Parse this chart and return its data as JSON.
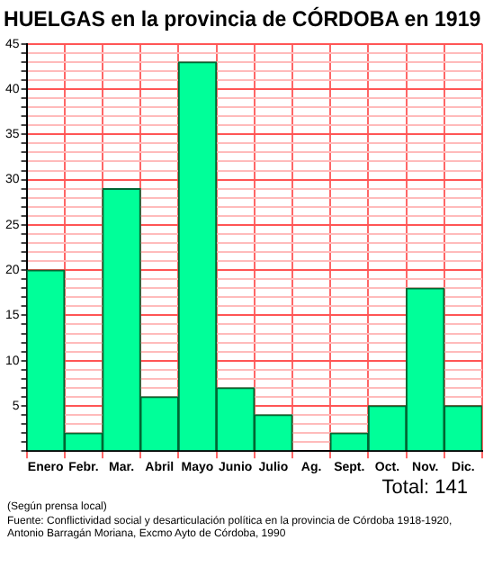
{
  "chart_data": {
    "type": "bar",
    "title": "HUELGAS en la provincia de CÓRDOBA en 1919",
    "categories": [
      "Enero",
      "Febr.",
      "Mar.",
      "Abril",
      "Mayo",
      "Junio",
      "Julio",
      "Ag.",
      "Sept.",
      "Oct.",
      "Nov.",
      "Dic."
    ],
    "values": [
      20,
      2,
      29,
      6,
      43,
      7,
      4,
      0,
      2,
      5,
      18,
      5
    ],
    "color": "#00ff99",
    "ylim": [
      0,
      45
    ],
    "yticks": [
      {
        "value": 0,
        "label": null
      },
      {
        "value": 1,
        "label": null
      },
      {
        "value": 2,
        "label": null
      },
      {
        "value": 3,
        "label": null
      },
      {
        "value": 4,
        "label": null
      },
      5,
      {
        "value": 6,
        "label": null
      },
      {
        "value": 7,
        "label": null
      },
      {
        "value": 8,
        "label": null
      },
      {
        "value": 9,
        "label": null
      },
      10,
      {
        "value": 11,
        "label": null
      },
      {
        "value": 12,
        "label": null
      },
      {
        "value": 13,
        "label": null
      },
      {
        "value": 14,
        "label": null
      },
      15,
      {
        "value": 16,
        "label": null
      },
      {
        "value": 17,
        "label": null
      },
      {
        "value": 18,
        "label": null
      },
      {
        "value": 19,
        "label": null
      },
      20,
      {
        "value": 21,
        "label": null
      },
      {
        "value": 22,
        "label": null
      },
      {
        "value": 23,
        "label": null
      },
      {
        "value": 24,
        "label": null
      },
      25,
      {
        "value": 26,
        "label": null
      },
      {
        "value": 27,
        "label": null
      },
      {
        "value": 28,
        "label": null
      },
      {
        "value": 29,
        "label": null
      },
      30,
      {
        "value": 31,
        "label": null
      },
      {
        "value": 32,
        "label": null
      },
      {
        "value": 33,
        "label": null
      },
      {
        "value": 34,
        "label": null
      },
      35,
      {
        "value": 36,
        "label": null
      },
      {
        "value": 37,
        "label": null
      },
      {
        "value": 38,
        "label": null
      },
      {
        "value": 39,
        "label": null
      },
      40,
      {
        "value": 41,
        "label": null
      },
      {
        "value": 42,
        "label": null
      },
      {
        "value": 43,
        "label": null
      },
      {
        "value": 44,
        "label": null
      },
      45
    ],
    "grid": true,
    "annotations": [
      "Total: 141",
      "(Según prensa local)",
      "Fuente: Conflictividad social y desarticulación política en la provincia de Córdoba 1918-1920, Antonio Barragán Moriana, Excmo Ayto de Córdoba, 1990"
    ]
  }
}
